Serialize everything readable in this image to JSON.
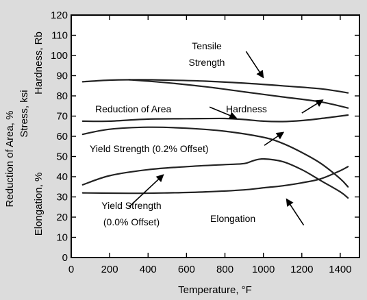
{
  "chart_data": {
    "type": "line",
    "title": "",
    "xlabel": "Temperature, °F",
    "ylabel_lines": [
      "Reduction of Area, %",
      "Stress, ksi",
      "Elongation, %"
    ],
    "ylabel_right": "Hardness, Rb",
    "xlim": [
      0,
      1500
    ],
    "ylim": [
      0,
      120
    ],
    "x_ticks": [
      0,
      200,
      400,
      600,
      800,
      1000,
      1200,
      1400
    ],
    "y_ticks": [
      0,
      10,
      20,
      30,
      40,
      50,
      60,
      70,
      80,
      90,
      100,
      110,
      120
    ],
    "grid": false,
    "series": [
      {
        "x": [
          60,
          200,
          350,
          500,
          700,
          900,
          1100,
          1300,
          1440
        ],
        "values": [
          87,
          87.8,
          88,
          87.8,
          87.3,
          86.3,
          85,
          83.5,
          81.5
        ]
      },
      {
        "x": [
          300,
          500,
          700,
          900,
          1100,
          1300,
          1440
        ],
        "values": [
          88,
          86.5,
          84.5,
          82,
          79.5,
          77,
          74
        ]
      },
      {
        "x": [
          60,
          200,
          400,
          600,
          800,
          900,
          1000,
          1100,
          1200,
          1300,
          1400,
          1440
        ],
        "values": [
          67.5,
          67.5,
          68.5,
          68.7,
          68.8,
          68.3,
          67.5,
          67.3,
          67.8,
          68.8,
          70,
          70.5
        ]
      },
      {
        "x": [
          60,
          200,
          400,
          600,
          800,
          1000,
          1100,
          1200,
          1300,
          1400,
          1440
        ],
        "values": [
          61,
          63.5,
          64.5,
          64,
          62.5,
          59.5,
          56.5,
          52,
          46.5,
          39,
          35
        ]
      },
      {
        "x": [
          60,
          200,
          400,
          600,
          800,
          900,
          950,
          1000,
          1100,
          1200,
          1300,
          1400,
          1440
        ],
        "values": [
          36,
          40.5,
          43.5,
          45,
          46,
          46.5,
          48,
          48.8,
          47.5,
          43.5,
          38,
          32.5,
          29.5
        ]
      },
      {
        "x": [
          60,
          300,
          500,
          700,
          900,
          1000,
          1100,
          1200,
          1300,
          1400,
          1440
        ],
        "values": [
          32,
          31.8,
          32,
          32.5,
          33.5,
          34.5,
          35.5,
          37,
          39,
          43,
          45
        ]
      }
    ],
    "annotations": [
      {
        "lines": [
          "Tensile",
          "Strength"
        ],
        "arrow_from": [
          910,
          102
        ],
        "arrow_to": [
          1000,
          89
        ]
      },
      {
        "lines": [
          "Hardness"
        ],
        "arrow_from": [
          1200,
          71.5
        ],
        "arrow_to": [
          1310,
          78
        ]
      },
      {
        "lines": [
          "Reduction of Area"
        ],
        "arrow_from": [
          720,
          74.5
        ],
        "arrow_to": [
          860,
          69
        ]
      },
      {
        "lines": [
          "Yield Strength (0.2% Offset)"
        ],
        "arrow_from": [
          1005,
          55.5
        ],
        "arrow_to": [
          1105,
          62
        ]
      },
      {
        "lines": [
          "Yield Strength",
          "(0.0% Offset)"
        ],
        "arrow_from": [
          300,
          25
        ],
        "arrow_to": [
          480,
          41
        ]
      },
      {
        "lines": [
          "Elongation"
        ],
        "arrow_from": [
          1210,
          16
        ],
        "arrow_to": [
          1120,
          29
        ]
      }
    ]
  }
}
